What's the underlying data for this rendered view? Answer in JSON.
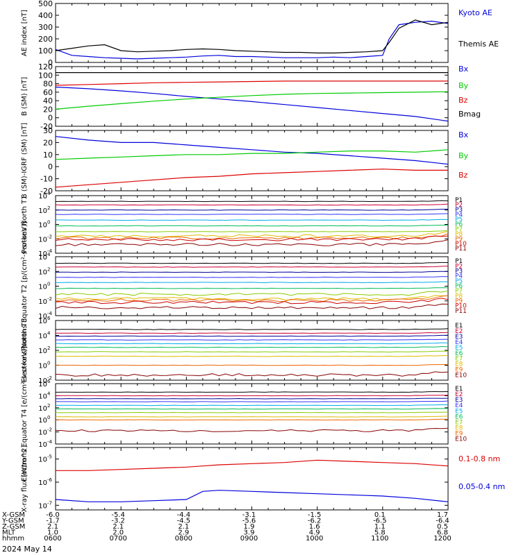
{
  "date_label": "2024 May 14",
  "orbit_table": {
    "rows": [
      {
        "label": "X-GSM",
        "values": [
          "-6.0",
          "-5.4",
          "-4.4",
          "-3.1",
          "-1.5",
          "0.1",
          "1.7"
        ]
      },
      {
        "label": "Y-GSM",
        "values": [
          "-1.7",
          "-3.2",
          "-4.5",
          "-5.6",
          "-6.2",
          "-6.5",
          "-6.4"
        ]
      },
      {
        "label": "Z-GSM",
        "values": [
          "2.1",
          "2.1",
          "2.1",
          "1.9",
          "1.6",
          "1.1",
          "0.5"
        ]
      },
      {
        "label": "MLT",
        "values": [
          "1.0",
          "2.0",
          "2.9",
          "3.9",
          "4.9",
          "5.8",
          "6.8"
        ]
      },
      {
        "label": "hhmm",
        "values": [
          "0600",
          "0700",
          "0800",
          "0900",
          "1000",
          "1100",
          "1200"
        ]
      }
    ]
  },
  "colors": {
    "blue": "#0000dd",
    "green": "#00cc00",
    "red": "#dd0000",
    "black": "#000000"
  },
  "chart_data": [
    {
      "type": "line",
      "ylabel": "AE index [nT]",
      "ylim": [
        0,
        500
      ],
      "yticks": [
        "0",
        "100",
        "200",
        "300",
        "400",
        "500"
      ],
      "x_hours": [
        6.0,
        6.25,
        6.5,
        6.75,
        7.0,
        7.25,
        7.5,
        7.75,
        8.0,
        8.25,
        8.5,
        8.75,
        9.0,
        9.25,
        9.5,
        9.75,
        10.0,
        10.25,
        10.5,
        10.75,
        11.0,
        11.1,
        11.25,
        11.5,
        11.75,
        12.0
      ],
      "series": [
        {
          "name": "Kyoto AE",
          "color": "blue",
          "values": [
            110,
            60,
            50,
            40,
            35,
            30,
            35,
            40,
            45,
            55,
            60,
            50,
            50,
            45,
            40,
            40,
            40,
            45,
            40,
            50,
            60,
            200,
            320,
            340,
            350,
            330
          ]
        },
        {
          "name": "Themis AE",
          "color": "black",
          "values": [
            100,
            120,
            140,
            150,
            100,
            90,
            95,
            100,
            110,
            115,
            110,
            100,
            95,
            90,
            85,
            85,
            80,
            80,
            85,
            90,
            100,
            170,
            290,
            360,
            320,
            340
          ]
        }
      ]
    },
    {
      "type": "line",
      "ylabel": "B (SM) [nT]",
      "ylim": [
        -20,
        120
      ],
      "yticks": [
        "-20",
        "0",
        "20",
        "40",
        "60",
        "80",
        "100",
        "120"
      ],
      "x_hours": [
        6.0,
        6.5,
        7.0,
        7.5,
        8.0,
        8.5,
        9.0,
        9.5,
        10.0,
        10.5,
        11.0,
        11.5,
        12.0
      ],
      "series": [
        {
          "name": "Bx",
          "color": "blue",
          "values": [
            72,
            68,
            63,
            57,
            50,
            44,
            38,
            31,
            24,
            17,
            10,
            3,
            -8
          ]
        },
        {
          "name": "By",
          "color": "green",
          "values": [
            20,
            27,
            33,
            39,
            44,
            48,
            52,
            55,
            57,
            58,
            59,
            60,
            61
          ]
        },
        {
          "name": "Bz",
          "color": "red",
          "values": [
            76,
            78,
            80,
            82,
            83,
            84,
            85,
            86,
            86,
            86,
            86,
            86,
            86
          ]
        },
        {
          "name": "Bmag",
          "color": "black",
          "values": [
            106,
            106,
            106,
            106,
            106,
            106,
            106,
            106,
            106,
            106,
            106,
            106,
            106
          ]
        }
      ]
    },
    {
      "type": "line",
      "ylabel": "B (SM)-IGRF (SM) [nT]",
      "ylim": [
        -20,
        30
      ],
      "yticks": [
        "-20",
        "-10",
        "0",
        "10",
        "20",
        "30"
      ],
      "x_hours": [
        6.0,
        6.5,
        7.0,
        7.5,
        8.0,
        8.5,
        9.0,
        9.5,
        10.0,
        10.5,
        11.0,
        11.5,
        12.0
      ],
      "series": [
        {
          "name": "Bx",
          "color": "blue",
          "values": [
            25,
            22,
            20,
            20,
            18,
            16,
            14,
            12,
            11,
            9,
            7,
            5,
            2
          ]
        },
        {
          "name": "By",
          "color": "green",
          "values": [
            6,
            7,
            8,
            9,
            10,
            10,
            11,
            11,
            12,
            13,
            13,
            12,
            14
          ]
        },
        {
          "name": "Bz",
          "color": "red",
          "values": [
            -17,
            -15,
            -13,
            -11,
            -9,
            -8,
            -6,
            -5,
            -4,
            -3,
            -2,
            -3,
            -3
          ]
        }
      ]
    },
    {
      "type": "line",
      "ylabel": "Protons North T1",
      "log": true,
      "ylim_exp": [
        -4,
        4
      ],
      "ytick_exps": [
        -4,
        -2,
        0,
        2,
        4
      ],
      "channels": [
        {
          "name": "P1",
          "color": "#000000",
          "value": 3.2
        },
        {
          "name": "P2",
          "color": "#cc0033",
          "value": 2.7
        },
        {
          "name": "P3",
          "color": "#000099",
          "value": 2.0
        },
        {
          "name": "P4",
          "color": "#3333ff",
          "value": 1.4
        },
        {
          "name": "P5",
          "color": "#00aaee",
          "value": 0.6
        },
        {
          "name": "P6",
          "color": "#00bb55",
          "value": -0.2
        },
        {
          "name": "P7",
          "color": "#88cc00",
          "value": -1.0
        },
        {
          "name": "P8",
          "color": "#ddbb00",
          "value": -1.6
        },
        {
          "name": "P9",
          "color": "#ee6600",
          "value": -1.9
        },
        {
          "name": "P10",
          "color": "#cc0000",
          "value": -2.1
        },
        {
          "name": "P11",
          "color": "#880000",
          "value": -2.8
        }
      ]
    },
    {
      "type": "line",
      "ylabel": "Protons Equator T2 [p/(cm²-s-sr-keV)]",
      "log": true,
      "ylim_exp": [
        -4,
        4
      ],
      "ytick_exps": [
        -4,
        -2,
        0,
        2,
        4
      ],
      "channels": [
        {
          "name": "P1",
          "color": "#000000",
          "value": 3.1
        },
        {
          "name": "P2",
          "color": "#cc0033",
          "value": 2.6
        },
        {
          "name": "P3",
          "color": "#000099",
          "value": 1.9
        },
        {
          "name": "P4",
          "color": "#3333ff",
          "value": 1.2
        },
        {
          "name": "P5",
          "color": "#00aaee",
          "value": 0.5
        },
        {
          "name": "P6",
          "color": "#00bb55",
          "value": -0.3
        },
        {
          "name": "P7",
          "color": "#88cc00",
          "value": -1.1
        },
        {
          "name": "P8",
          "color": "#ddbb00",
          "value": -1.7
        },
        {
          "name": "P9",
          "color": "#ee6600",
          "value": -1.9
        },
        {
          "name": "P10",
          "color": "#cc0000",
          "value": -2.2
        },
        {
          "name": "P11",
          "color": "#880000",
          "value": -2.9
        }
      ]
    },
    {
      "type": "line",
      "ylabel": "Electrons North T3",
      "log": true,
      "ylim_exp": [
        -2,
        6
      ],
      "ytick_exps": [
        -2,
        0,
        2,
        4,
        6
      ],
      "channels": [
        {
          "name": "E1",
          "color": "#000000",
          "value": 4.8
        },
        {
          "name": "E2",
          "color": "#cc0033",
          "value": 4.3
        },
        {
          "name": "E3",
          "color": "#000099",
          "value": 3.9
        },
        {
          "name": "E4",
          "color": "#3333ff",
          "value": 3.4
        },
        {
          "name": "E5",
          "color": "#00aaee",
          "value": 2.9
        },
        {
          "name": "E6",
          "color": "#00bb55",
          "value": 2.4
        },
        {
          "name": "E7",
          "color": "#88cc00",
          "value": 1.8
        },
        {
          "name": "E8",
          "color": "#ddbb00",
          "value": 1.2
        },
        {
          "name": "E9",
          "color": "#ee6600",
          "value": 0.0
        },
        {
          "name": "E10",
          "color": "#880000",
          "value": -1.3
        }
      ]
    },
    {
      "type": "line",
      "ylabel": "Electrons Equator T4 [e/(cm²-s-sr-keV)]",
      "log": true,
      "ylim_exp": [
        -4,
        6
      ],
      "ytick_exps": [
        -4,
        -2,
        0,
        2,
        4,
        6
      ],
      "channels": [
        {
          "name": "E1",
          "color": "#000000",
          "value": 4.6
        },
        {
          "name": "E2",
          "color": "#cc0033",
          "value": 4.0
        },
        {
          "name": "E3",
          "color": "#000099",
          "value": 3.5
        },
        {
          "name": "E4",
          "color": "#3333ff",
          "value": 3.0
        },
        {
          "name": "E5",
          "color": "#00aaee",
          "value": 2.4
        },
        {
          "name": "E6",
          "color": "#00bb55",
          "value": 1.8
        },
        {
          "name": "E7",
          "color": "#88cc00",
          "value": 1.2
        },
        {
          "name": "E8",
          "color": "#ddbb00",
          "value": 0.5
        },
        {
          "name": "E9",
          "color": "#ee6600",
          "value": 0.0
        },
        {
          "name": "E10",
          "color": "#880000",
          "value": -1.8
        }
      ]
    },
    {
      "type": "line",
      "ylabel": "X-ray flux [W/m^2]",
      "log": true,
      "ylim_exp": [
        -7.2,
        -4.5
      ],
      "ytick_exps": [
        -7,
        -6,
        -5
      ],
      "x_hours": [
        6.0,
        6.5,
        7.0,
        7.5,
        8.0,
        8.25,
        8.5,
        9.0,
        9.5,
        10.0,
        10.5,
        11.0,
        11.5,
        12.0
      ],
      "series": [
        {
          "name": "0.1-0.8 nm",
          "color": "red",
          "values": [
            -5.5,
            -5.5,
            -5.45,
            -5.4,
            -5.35,
            -5.3,
            -5.25,
            -5.2,
            -5.15,
            -5.05,
            -5.1,
            -5.15,
            -5.2,
            -5.3
          ]
        },
        {
          "name": "0.05-0.4 nm",
          "color": "blue",
          "values": [
            -6.75,
            -6.85,
            -6.85,
            -6.8,
            -6.75,
            -6.4,
            -6.35,
            -6.4,
            -6.45,
            -6.5,
            -6.55,
            -6.6,
            -6.7,
            -6.85
          ]
        }
      ]
    }
  ]
}
